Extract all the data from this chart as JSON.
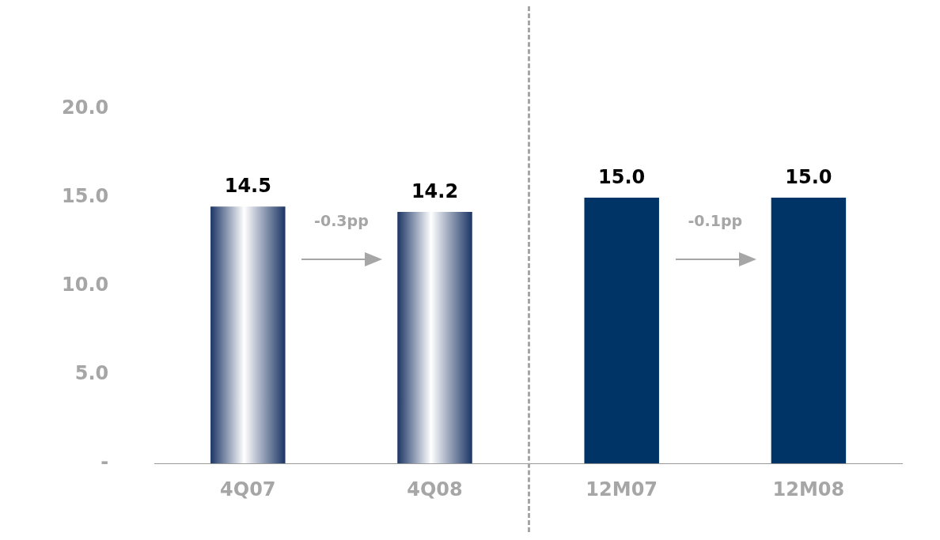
{
  "chart_data": {
    "type": "bar",
    "categories": [
      "4Q07",
      "4Q08",
      "12M07",
      "12M08"
    ],
    "values": [
      14.5,
      14.2,
      15.0,
      15.0
    ],
    "colors": [
      "#1c3565",
      "#1c3565",
      "#003366",
      "#003366"
    ],
    "ylim": [
      0,
      20
    ],
    "yticks": [
      {
        "value": 0,
        "label": "-"
      },
      {
        "value": 5,
        "label": "5.0"
      },
      {
        "value": 10,
        "label": "10.0"
      },
      {
        "value": 15,
        "label": "15.0"
      },
      {
        "value": 20,
        "label": "20.0"
      }
    ],
    "value_labels": [
      "14.5",
      "14.2",
      "15.0",
      "15.0"
    ],
    "grid": false,
    "legend": false,
    "annotations": [
      "-0.3pp",
      "-0.1pp"
    ]
  }
}
